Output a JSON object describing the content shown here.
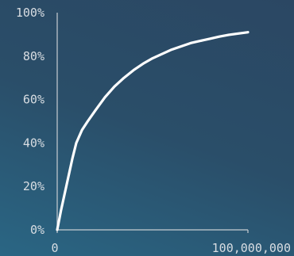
{
  "chart_data": {
    "type": "line",
    "title": "",
    "xlabel": "",
    "ylabel": "",
    "xlim": [
      0,
      100000000
    ],
    "ylim": [
      0,
      100
    ],
    "x_ticks": [
      "0",
      "100,000,000"
    ],
    "y_ticks": [
      "0%",
      "20%",
      "40%",
      "60%",
      "80%",
      "100%"
    ],
    "grid": false,
    "legend": "none",
    "line_color": "#ffffff",
    "axis_color": "#c8cdd2",
    "series": [
      {
        "x": [
          0,
          2000000,
          5000000,
          8000000,
          10000000,
          13000000,
          16000000,
          20000000,
          25000000,
          30000000,
          35000000,
          40000000,
          45000000,
          50000000,
          55000000,
          60000000,
          65000000,
          70000000,
          75000000,
          80000000,
          85000000,
          90000000,
          95000000,
          100000000
        ],
        "y": [
          0,
          9,
          21,
          33,
          40,
          46,
          50,
          55,
          61,
          66,
          70,
          73.5,
          76.5,
          79,
          81,
          83,
          84.5,
          86,
          87,
          88,
          89,
          89.8,
          90.4,
          91
        ]
      }
    ]
  }
}
